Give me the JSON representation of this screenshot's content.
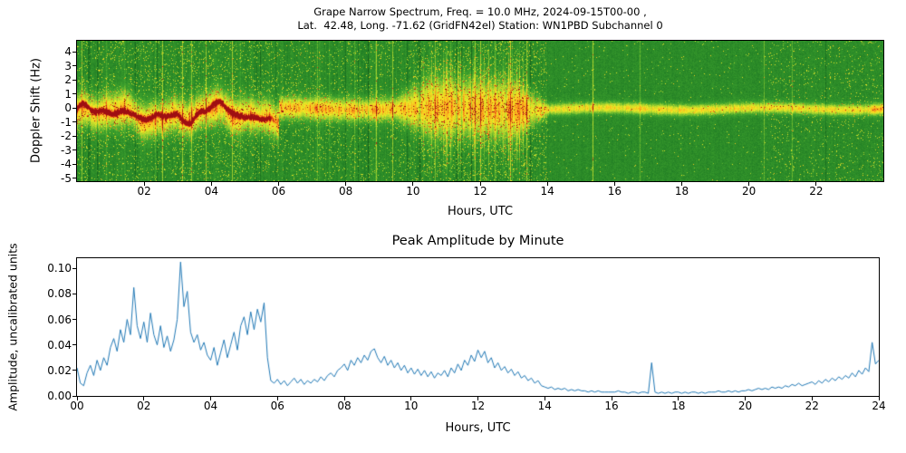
{
  "figure": {
    "background": "#ffffff"
  },
  "chart_data": [
    {
      "type": "heatmap",
      "panel": "top",
      "title_line1": "Grape Narrow Spectrum, Freq. = 10.0 MHz, 2024-09-15T00-00 ,",
      "title_line2": "Lat.  42.48, Long. -71.62 (GridFN42el) Station: WN1PBD Subchannel 0",
      "xlabel": "Hours, UTC",
      "ylabel": "Doppler Shift (Hz)",
      "xlim": [
        0,
        24
      ],
      "ylim": [
        -5.2,
        4.8
      ],
      "xtick_values": [
        2,
        4,
        6,
        8,
        10,
        12,
        14,
        16,
        18,
        20,
        22
      ],
      "xtick_labels": [
        "02",
        "04",
        "06",
        "08",
        "10",
        "12",
        "14",
        "16",
        "18",
        "20",
        "22"
      ],
      "ytick_values": [
        4,
        3,
        2,
        1,
        0,
        -1,
        -2,
        -3,
        -4,
        -5
      ],
      "ytick_labels": [
        "4",
        "3",
        "2",
        "1",
        "0",
        "-1",
        "-2",
        "-3",
        "-4",
        "-5"
      ],
      "colormap": [
        [
          0.0,
          "#0a3d0a"
        ],
        [
          0.22,
          "#1e7a24"
        ],
        [
          0.42,
          "#3fa32e"
        ],
        [
          0.56,
          "#9ccf30"
        ],
        [
          0.7,
          "#f2ea25"
        ],
        [
          0.82,
          "#fca61c"
        ],
        [
          0.92,
          "#e23b17"
        ],
        [
          1.0,
          "#9e0f12"
        ]
      ],
      "features": {
        "description": "Doppler spectrogram: speckled green noise background with vertical broadband streaks; bright yellow carrier band near 0 Hz; red wandering trace from 00:00-06:00 between -1 and 0 Hz; band broadens 10:00-13:30 with orange/red flecks; thin quiet yellow line after 14:00 brightening near 24:00",
        "seed": 42,
        "band_center_hz": 0,
        "red_trace_hours": [
          0,
          6
        ],
        "wide_band_hours": [
          10,
          13.5
        ],
        "quiet_hours": [
          14,
          24
        ]
      }
    },
    {
      "type": "line",
      "panel": "bottom",
      "title": "Peak Amplitude by Minute",
      "xlabel": "Hours, UTC",
      "ylabel": "Amplitude, uncalibrated units",
      "xlim": [
        0,
        24
      ],
      "ylim": [
        0,
        0.108
      ],
      "xtick_values": [
        0,
        2,
        4,
        6,
        8,
        10,
        12,
        14,
        16,
        18,
        20,
        22,
        24
      ],
      "xtick_labels": [
        "00",
        "02",
        "04",
        "06",
        "08",
        "10",
        "12",
        "14",
        "16",
        "18",
        "20",
        "22",
        "24"
      ],
      "ytick_values": [
        0,
        0.02,
        0.04,
        0.06,
        0.08,
        0.1
      ],
      "ytick_labels": [
        "0.00",
        "0.02",
        "0.04",
        "0.06",
        "0.08",
        "0.10"
      ],
      "line_color": "#1f77b4",
      "x_start": 0,
      "x_step": 0.1,
      "values": [
        0.022,
        0.01,
        0.008,
        0.018,
        0.024,
        0.016,
        0.028,
        0.02,
        0.03,
        0.024,
        0.038,
        0.045,
        0.035,
        0.052,
        0.042,
        0.06,
        0.048,
        0.085,
        0.055,
        0.045,
        0.058,
        0.042,
        0.065,
        0.048,
        0.04,
        0.055,
        0.038,
        0.047,
        0.035,
        0.044,
        0.06,
        0.105,
        0.07,
        0.082,
        0.05,
        0.042,
        0.048,
        0.036,
        0.042,
        0.032,
        0.028,
        0.038,
        0.024,
        0.034,
        0.044,
        0.03,
        0.04,
        0.05,
        0.036,
        0.055,
        0.062,
        0.048,
        0.066,
        0.052,
        0.068,
        0.058,
        0.073,
        0.03,
        0.012,
        0.01,
        0.013,
        0.009,
        0.012,
        0.008,
        0.011,
        0.014,
        0.01,
        0.013,
        0.009,
        0.012,
        0.01,
        0.013,
        0.011,
        0.015,
        0.012,
        0.016,
        0.018,
        0.015,
        0.02,
        0.022,
        0.025,
        0.02,
        0.028,
        0.024,
        0.03,
        0.026,
        0.032,
        0.028,
        0.035,
        0.037,
        0.03,
        0.026,
        0.031,
        0.024,
        0.028,
        0.022,
        0.026,
        0.02,
        0.024,
        0.018,
        0.022,
        0.017,
        0.021,
        0.016,
        0.02,
        0.015,
        0.019,
        0.014,
        0.018,
        0.016,
        0.02,
        0.015,
        0.022,
        0.018,
        0.025,
        0.02,
        0.028,
        0.024,
        0.032,
        0.027,
        0.036,
        0.03,
        0.035,
        0.026,
        0.03,
        0.022,
        0.026,
        0.02,
        0.023,
        0.018,
        0.021,
        0.016,
        0.019,
        0.014,
        0.016,
        0.012,
        0.014,
        0.01,
        0.012,
        0.008,
        0.007,
        0.006,
        0.007,
        0.005,
        0.006,
        0.005,
        0.006,
        0.004,
        0.005,
        0.004,
        0.005,
        0.004,
        0.004,
        0.003,
        0.004,
        0.003,
        0.004,
        0.003,
        0.003,
        0.003,
        0.003,
        0.003,
        0.004,
        0.003,
        0.003,
        0.002,
        0.003,
        0.003,
        0.002,
        0.003,
        0.003,
        0.002,
        0.026,
        0.003,
        0.002,
        0.003,
        0.002,
        0.003,
        0.002,
        0.003,
        0.003,
        0.002,
        0.003,
        0.002,
        0.003,
        0.003,
        0.002,
        0.003,
        0.002,
        0.003,
        0.003,
        0.003,
        0.004,
        0.003,
        0.003,
        0.004,
        0.003,
        0.004,
        0.003,
        0.004,
        0.004,
        0.005,
        0.004,
        0.005,
        0.006,
        0.005,
        0.006,
        0.005,
        0.007,
        0.006,
        0.007,
        0.006,
        0.008,
        0.007,
        0.009,
        0.008,
        0.01,
        0.008,
        0.009,
        0.01,
        0.011,
        0.009,
        0.012,
        0.01,
        0.013,
        0.011,
        0.014,
        0.012,
        0.015,
        0.013,
        0.016,
        0.014,
        0.018,
        0.015,
        0.02,
        0.017,
        0.022,
        0.019,
        0.042,
        0.025,
        0.028
      ]
    }
  ]
}
